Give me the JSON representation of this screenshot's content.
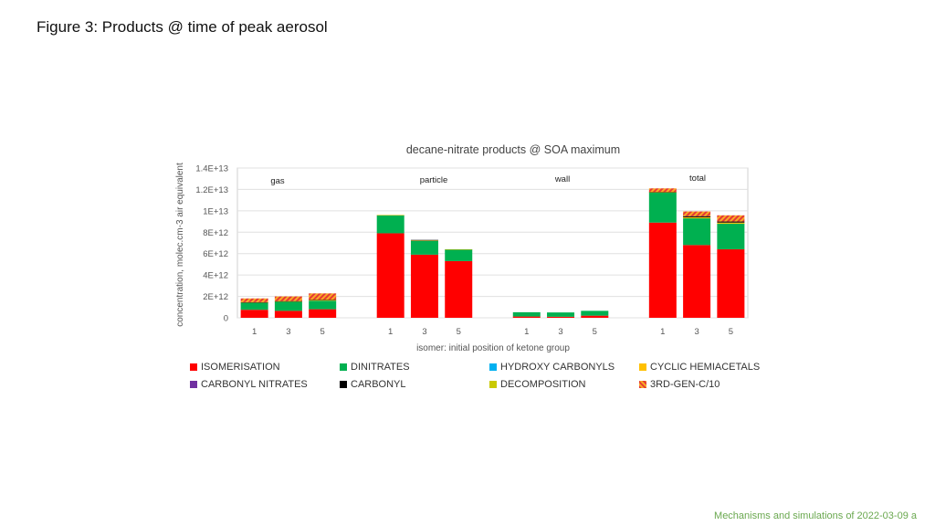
{
  "slide_title": "Figure 3: Products @ time of peak aerosol",
  "footer": "Mechanisms and simulations of 2022-03-09 a",
  "chart_data": {
    "type": "bar",
    "stacked": true,
    "title": "decane-nitrate products @ SOA maximum",
    "xlabel": "isomer: initial position of ketone group",
    "ylabel": "concentration, molec.cm-3 air equivalent",
    "ylim": [
      0,
      14000000000000
    ],
    "yticks": [
      0,
      2000000000000,
      4000000000000,
      6000000000000,
      8000000000000,
      10000000000000,
      12000000000000,
      14000000000000
    ],
    "ytick_labels": [
      "0",
      "2E+12",
      "4E+12",
      "6E+12",
      "8E+12",
      "1E+13",
      "1.2E+13",
      "1.4E+13"
    ],
    "grid": true,
    "legend_position": "bottom",
    "groups": [
      {
        "label": "gas",
        "categories": [
          "1",
          "3",
          "5"
        ]
      },
      {
        "label": "particle",
        "categories": [
          "1",
          "3",
          "5"
        ]
      },
      {
        "label": "wall",
        "categories": [
          "1",
          "3",
          "5"
        ]
      },
      {
        "label": "total",
        "categories": [
          "1",
          "3",
          "5"
        ]
      }
    ],
    "series": [
      {
        "name": "ISOMERISATION",
        "color": "#ff0000",
        "values": [
          750000000000.0,
          650000000000.0,
          800000000000.0,
          7900000000000.0,
          5900000000000.0,
          5300000000000.0,
          120000000000.0,
          100000000000.0,
          200000000000.0,
          8900000000000.0,
          6800000000000.0,
          6400000000000.0
        ]
      },
      {
        "name": "DINITRATES",
        "color": "#00b050",
        "values": [
          650000000000.0,
          850000000000.0,
          800000000000.0,
          1700000000000.0,
          1300000000000.0,
          1100000000000.0,
          400000000000.0,
          400000000000.0,
          450000000000.0,
          2800000000000.0,
          2500000000000.0,
          2400000000000.0
        ]
      },
      {
        "name": "HYDROXY CARBONYLS",
        "color": "#00b0f0",
        "values": [
          0,
          0,
          0,
          0,
          0,
          0,
          0,
          0,
          0,
          0,
          0,
          0
        ]
      },
      {
        "name": "CYCLIC HEMIACETALS",
        "color": "#ffc000",
        "values": [
          50000000000.0,
          50000000000.0,
          80000000000.0,
          10000000000.0,
          30000000000.0,
          10000000000.0,
          0,
          0,
          0,
          60000000000.0,
          100000000000.0,
          100000000000.0
        ]
      },
      {
        "name": "CARBONYL NITRATES",
        "color": "#7030a0",
        "values": [
          0,
          0,
          0,
          0,
          0,
          0,
          0,
          0,
          0,
          0,
          0,
          0
        ]
      },
      {
        "name": "CARBONYL",
        "color": "#000000",
        "values": [
          10000000000.0,
          10000000000.0,
          20000000000.0,
          0,
          50000000000.0,
          0,
          0,
          0,
          0,
          10000000000.0,
          100000000000.0,
          100000000000.0
        ]
      },
      {
        "name": "DECOMPOSITION",
        "color": "#c9c900",
        "values": [
          0,
          0,
          0,
          0,
          0,
          0,
          0,
          0,
          0,
          0,
          0,
          0
        ]
      },
      {
        "name": "3RD-GEN-C/10",
        "color": "#e53935",
        "pattern": "hatch-red-orange",
        "values": [
          350000000000.0,
          440000000000.0,
          580000000000.0,
          0,
          0,
          0,
          0,
          0,
          0,
          330000000000.0,
          440000000000.0,
          580000000000.0
        ]
      }
    ]
  }
}
